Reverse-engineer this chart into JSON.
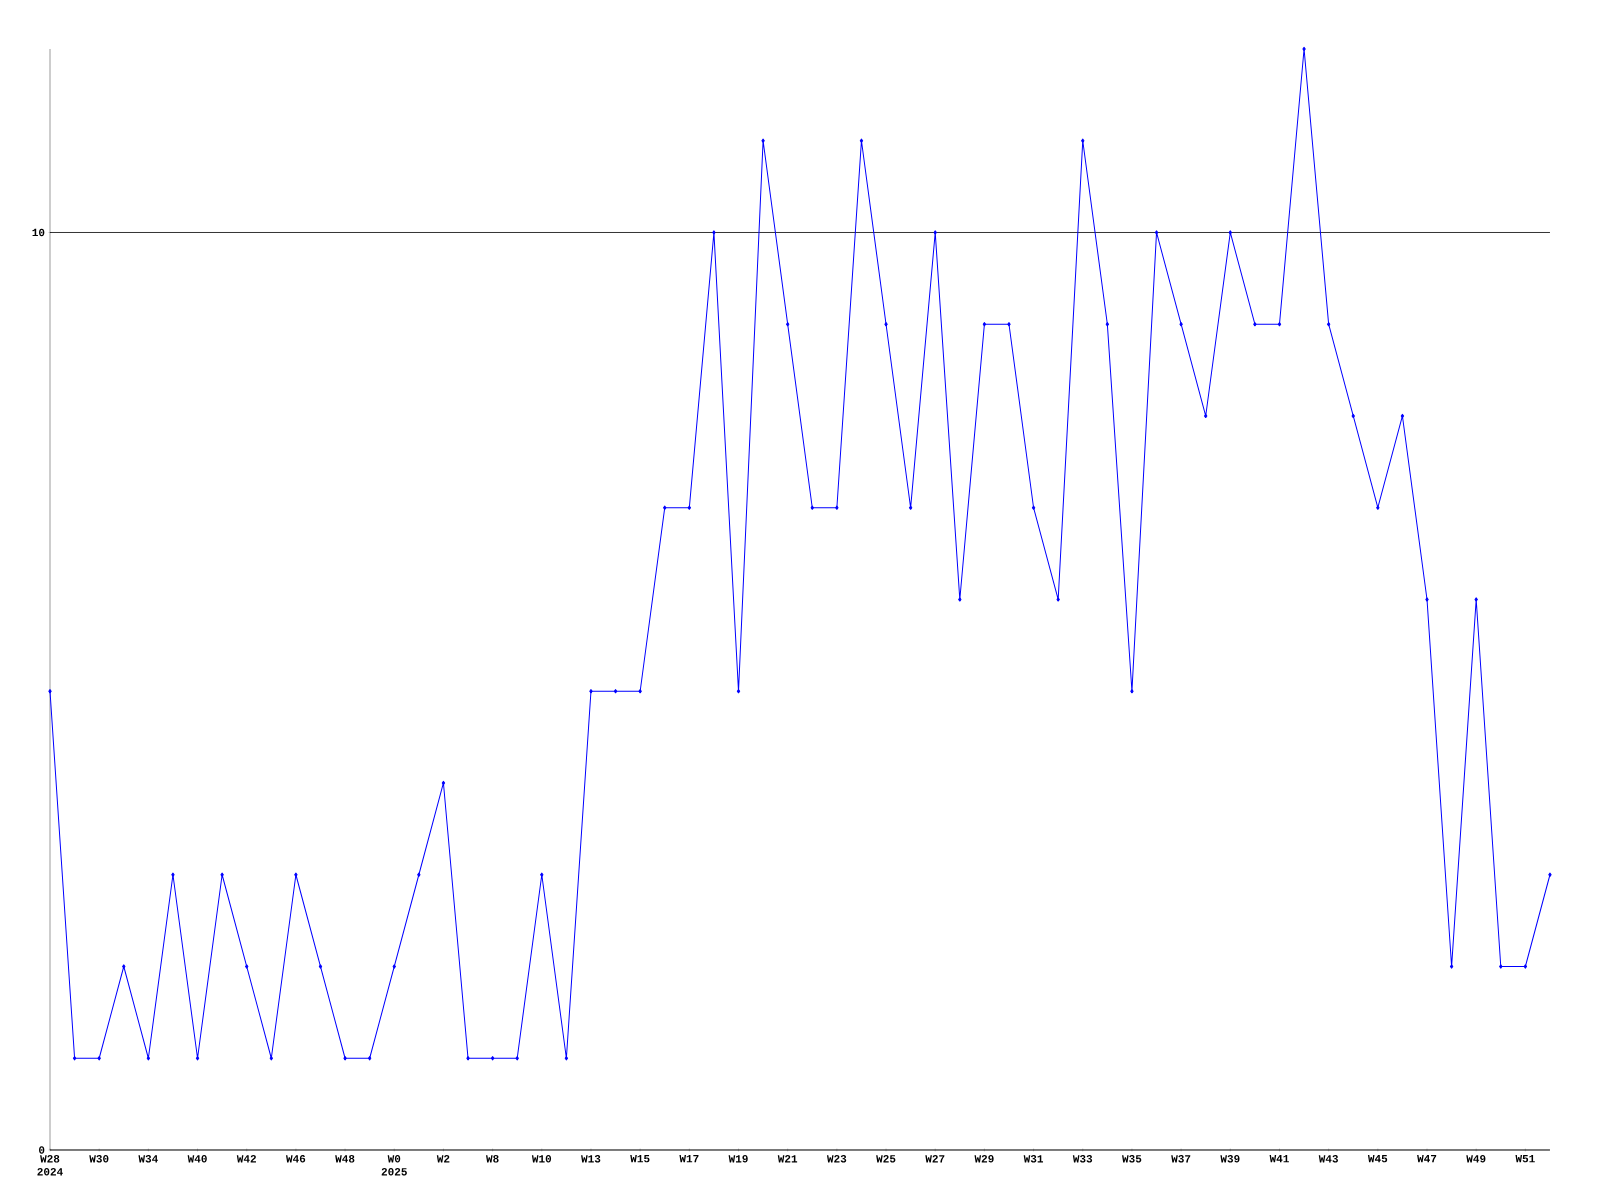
{
  "chart_data": {
    "type": "line",
    "categories": [
      "W28 2024",
      null,
      "W30",
      null,
      "W34",
      null,
      "W40",
      null,
      "W42",
      null,
      "W46",
      null,
      "W48",
      null,
      "W0 2025",
      null,
      "W2",
      null,
      "W8",
      null,
      "W10",
      null,
      "W13",
      null,
      "W15",
      null,
      "W17",
      null,
      "W19",
      null,
      "W21",
      null,
      "W23",
      null,
      "W25",
      null,
      "W27",
      null,
      "W29",
      null,
      "W31",
      null,
      "W33",
      null,
      "W35",
      null,
      "W37",
      null,
      "W39",
      null,
      "W41",
      null,
      "W43",
      null,
      "W45",
      null,
      "W47",
      null,
      "W49",
      null,
      "W51",
      null
    ],
    "values": [
      5,
      1,
      1,
      2,
      1,
      3,
      1,
      3,
      2,
      1,
      3,
      2,
      1,
      1,
      2,
      3,
      4,
      1,
      1,
      1,
      3,
      1,
      5,
      5,
      5,
      7,
      7,
      10,
      5,
      11,
      9,
      7,
      7,
      11,
      9,
      7,
      10,
      6,
      9,
      9,
      7,
      6,
      11,
      9,
      5,
      10,
      9,
      8,
      10,
      9,
      9,
      12,
      9,
      8,
      7,
      8,
      6,
      2,
      6,
      2,
      2,
      3
    ],
    "color": "#0000ff",
    "marker": "diamond",
    "line_style": "solid",
    "grid": "y",
    "ylim": [
      0,
      12
    ],
    "yticks": [
      0,
      10
    ]
  }
}
